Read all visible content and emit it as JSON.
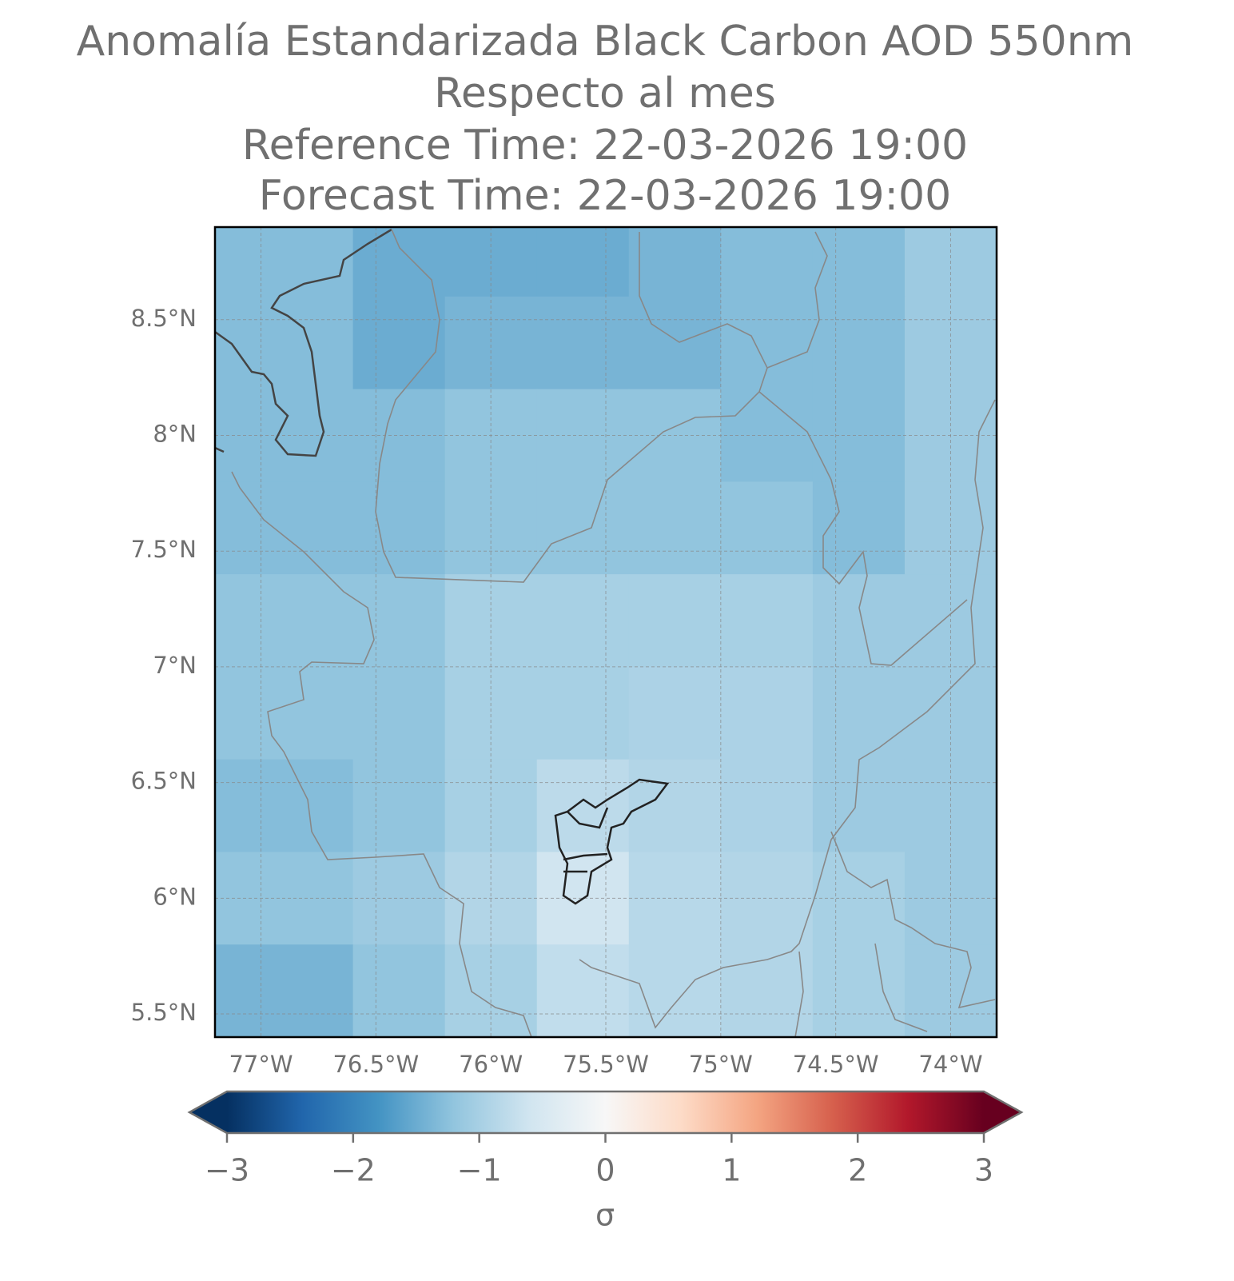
{
  "chart_data": {
    "type": "heatmap",
    "title": [
      "Anomalía Estandarizada Black Carbon AOD 550nm",
      "Respecto al mes",
      "Reference Time: 22-03-2026 19:00",
      "Forecast Time: 22-03-2026 19:00"
    ],
    "lon_edges": [
      -77.2,
      -76.6,
      -76.2,
      -75.8,
      -75.4,
      -75.0,
      -74.6,
      -74.2,
      -73.8
    ],
    "lat_edges": [
      8.9,
      8.6,
      8.2,
      7.8,
      7.4,
      7.0,
      6.6,
      6.2,
      5.8,
      5.4
    ],
    "values": [
      [
        -1.3,
        -1.5,
        -1.5,
        -1.5,
        -1.4,
        -1.3,
        -1.3,
        -1.1
      ],
      [
        -1.3,
        -1.5,
        -1.4,
        -1.4,
        -1.4,
        -1.3,
        -1.3,
        -1.1
      ],
      [
        -1.3,
        -1.3,
        -1.2,
        -1.2,
        -1.2,
        -1.3,
        -1.3,
        -1.1
      ],
      [
        -1.3,
        -1.3,
        -1.2,
        -1.2,
        -1.2,
        -1.2,
        -1.3,
        -1.1
      ],
      [
        -1.2,
        -1.2,
        -1.0,
        -1.0,
        -1.0,
        -1.0,
        -1.1,
        -1.1
      ],
      [
        -1.2,
        -1.2,
        -1.0,
        -1.0,
        -0.95,
        -0.95,
        -1.1,
        -1.1
      ],
      [
        -1.3,
        -1.2,
        -1.0,
        -0.8,
        -0.9,
        -0.95,
        -1.1,
        -1.1
      ],
      [
        -1.2,
        -1.1,
        -0.9,
        -0.6,
        -0.85,
        -0.9,
        -1.0,
        -1.1
      ],
      [
        -1.4,
        -1.2,
        -1.0,
        -0.75,
        -0.85,
        -0.9,
        -1.0,
        -1.1
      ]
    ],
    "xlim": [
      -77.2,
      -73.8
    ],
    "ylim": [
      5.4,
      8.9
    ],
    "xticks": [
      {
        "value": -77,
        "label": "77°W"
      },
      {
        "value": -76.5,
        "label": "76.5°W"
      },
      {
        "value": -76,
        "label": "76°W"
      },
      {
        "value": -75.5,
        "label": "75.5°W"
      },
      {
        "value": -75,
        "label": "75°W"
      },
      {
        "value": -74.5,
        "label": "74.5°W"
      },
      {
        "value": -74,
        "label": "74°W"
      }
    ],
    "yticks": [
      {
        "value": 8.5,
        "label": "8.5°N"
      },
      {
        "value": 8,
        "label": "8°N"
      },
      {
        "value": 7.5,
        "label": "7.5°N"
      },
      {
        "value": 7,
        "label": "7°N"
      },
      {
        "value": 6.5,
        "label": "6.5°N"
      },
      {
        "value": 6,
        "label": "6°N"
      },
      {
        "value": 5.5,
        "label": "5.5°N"
      }
    ],
    "grid": true,
    "clim": [
      -3,
      3
    ],
    "cticks": [
      {
        "value": -3,
        "label": "−3"
      },
      {
        "value": -2,
        "label": "−2"
      },
      {
        "value": -1,
        "label": "−1"
      },
      0,
      1,
      2,
      3
    ],
    "colorbar_label": "σ",
    "cmap_colors": [
      "#053061",
      "#2166ac",
      "#4393c3",
      "#92c5de",
      "#d1e5f0",
      "#f7f7f7",
      "#fddbc7",
      "#f4a582",
      "#d6604d",
      "#b2182b",
      "#67001f"
    ]
  }
}
